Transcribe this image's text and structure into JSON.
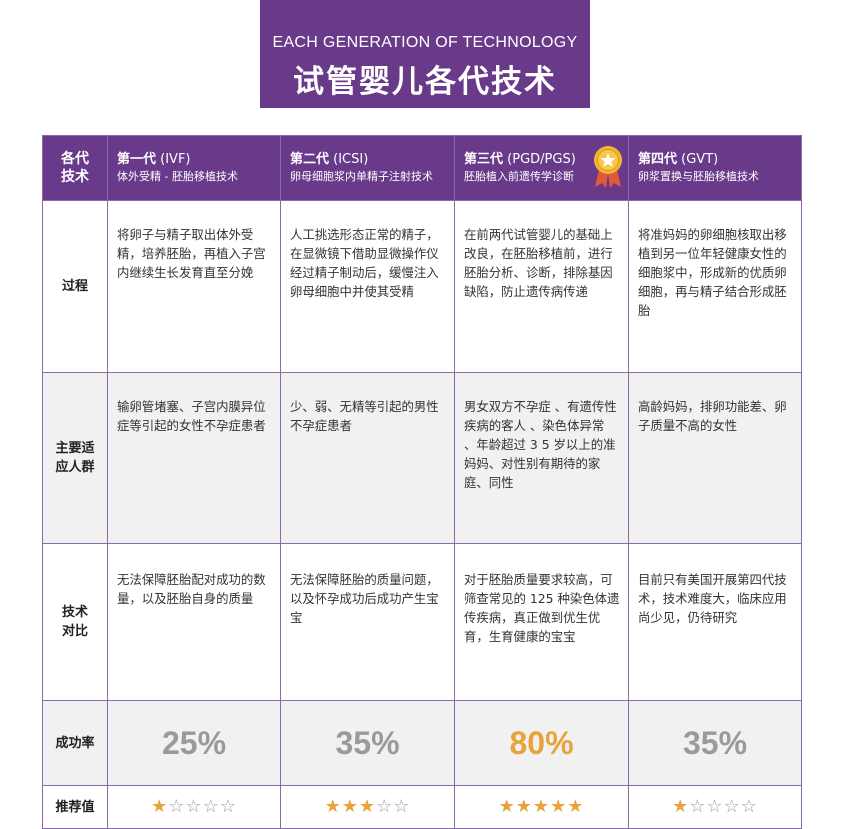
{
  "title": {
    "en": "EACH GENERATION OF TECHNOLOGY",
    "zh": "试管婴儿各代技术"
  },
  "colors": {
    "purple": "#6a3a8a",
    "gold": "#e8a33d",
    "gray": "#9a9a9a"
  },
  "header": {
    "corner": [
      "各代",
      "技术"
    ],
    "generations": [
      {
        "name": "第一代",
        "code": "(IVF)",
        "desc": "体外受精 - 胚胎移植技术"
      },
      {
        "name": "第二代",
        "code": "(ICSI)",
        "desc": "卵母细胞浆内单精子注射技术"
      },
      {
        "name": "第三代",
        "code": "(PGD/PGS)",
        "desc": "胚胎植入前遗传学诊断",
        "badge": "medal-icon"
      },
      {
        "name": "第四代",
        "code": "(GVT)",
        "desc": "卵浆置换与胚胎移植技术"
      }
    ]
  },
  "rows": {
    "process": {
      "label": [
        "过程"
      ],
      "cells": [
        "将卵子与精子取出体外受精，培养胚胎，再植入子宫内继续生长发育直至分娩",
        "人工挑选形态正常的精子，在显微镜下借助显微操作仪经过精子制动后，缓慢注入卵母细胞中并使其受精",
        "在前两代试管婴儿的基础上改良，在胚胎移植前，进行胚胎分析、诊断，排除基因缺陷，防止遗传病传递",
        "将准妈妈的卵细胞核取出移植到另一位年轻健康女性的细胞浆中，形成新的优质卵细胞，再与精子结合形成胚胎"
      ]
    },
    "audience": {
      "label": [
        "主要适",
        "应人群"
      ],
      "cells": [
        "输卵管堵塞、子宫内膜异位症等引起的女性不孕症患者",
        "少、弱、无精等引起的男性不孕症患者",
        "男女双方不孕症 、有遗传性疾病的客人 、染色体异常 、年龄超过 3 5 岁以上的准妈妈、对性别有期待的家庭、同性",
        "高龄妈妈，排卵功能差、卵子质量不高的女性"
      ]
    },
    "tech": {
      "label": [
        "技术",
        "对比"
      ],
      "cells": [
        "无法保障胚胎配对成功的数量，以及胚胎自身的质量",
        "无法保障胚胎的质量问题，以及怀孕成功后成功产生宝宝",
        "对于胚胎质量要求较高，可筛查常见的 125 种染色体遗传疾病，真正做到优生优育，生育健康的宝宝",
        "目前只有美国开展第四代技术，技术难度大，临床应用尚少见，仍待研究"
      ]
    },
    "success": {
      "label": [
        "成功率"
      ],
      "cells": [
        "25%",
        "35%",
        "80%",
        "35%"
      ]
    },
    "rating": {
      "label": [
        "推荐值"
      ],
      "filled": [
        "★",
        "★★★",
        "★★★★★",
        "★"
      ],
      "empty": [
        "☆☆☆☆",
        "☆☆",
        "",
        "☆☆☆☆"
      ],
      "stars_out_of_5": [
        1,
        3,
        5,
        1
      ]
    }
  }
}
